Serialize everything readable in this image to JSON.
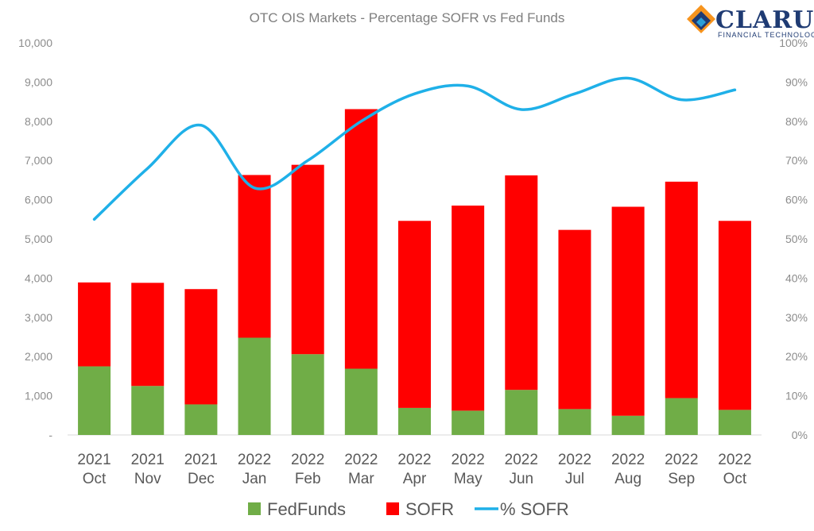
{
  "logo": {
    "name": "CLARUS",
    "tagline": "FINANCIAL TECHNOLOGY",
    "colors": [
      "#f7941d",
      "#1f3b73",
      "#2a9fd8"
    ]
  },
  "chart_data": {
    "type": "bar",
    "stacked": true,
    "title": "OTC OIS Markets - Percentage SOFR vs Fed Funds",
    "categories": [
      [
        "2021",
        "Oct"
      ],
      [
        "2021",
        "Nov"
      ],
      [
        "2021",
        "Dec"
      ],
      [
        "2022",
        "Jan"
      ],
      [
        "2022",
        "Feb"
      ],
      [
        "2022",
        "Mar"
      ],
      [
        "2022",
        "Apr"
      ],
      [
        "2022",
        "May"
      ],
      [
        "2022",
        "Jun"
      ],
      [
        "2022",
        "Jul"
      ],
      [
        "2022",
        "Aug"
      ],
      [
        "2022",
        "Sep"
      ],
      [
        "2022",
        "Oct"
      ]
    ],
    "series": [
      {
        "name": "FedFunds",
        "kind": "bar",
        "axis": "left",
        "color": "#70ad47",
        "values": [
          1750,
          1250,
          780,
          2480,
          2060,
          1690,
          690,
          620,
          1150,
          660,
          490,
          940,
          640
        ]
      },
      {
        "name": "SOFR",
        "kind": "bar",
        "axis": "left",
        "color": "#ff0000",
        "values": [
          2140,
          2630,
          2940,
          4150,
          4830,
          6620,
          4770,
          5230,
          5470,
          4570,
          5330,
          5520,
          4820
        ]
      },
      {
        "name": "% SOFR",
        "kind": "line",
        "axis": "right",
        "color": "#1fb0e8",
        "values": [
          0.55,
          0.68,
          0.79,
          0.63,
          0.7,
          0.8,
          0.87,
          0.89,
          0.83,
          0.87,
          0.91,
          0.855,
          0.88
        ]
      }
    ],
    "left_axis": {
      "ylim": [
        0,
        10000
      ],
      "ticks": [
        0,
        1000,
        2000,
        3000,
        4000,
        5000,
        6000,
        7000,
        8000,
        9000,
        10000
      ],
      "tick_labels": [
        "-",
        "1,000",
        "2,000",
        "3,000",
        "4,000",
        "5,000",
        "6,000",
        "7,000",
        "8,000",
        "9,000",
        "10,000"
      ]
    },
    "right_axis": {
      "ylim": [
        0,
        1
      ],
      "ticks": [
        0,
        0.1,
        0.2,
        0.3,
        0.4,
        0.5,
        0.6,
        0.7,
        0.8,
        0.9,
        1
      ],
      "tick_labels": [
        "0%",
        "10%",
        "20%",
        "30%",
        "40%",
        "50%",
        "60%",
        "70%",
        "80%",
        "90%",
        "100%"
      ]
    },
    "grid": false,
    "legend": "bottom"
  }
}
